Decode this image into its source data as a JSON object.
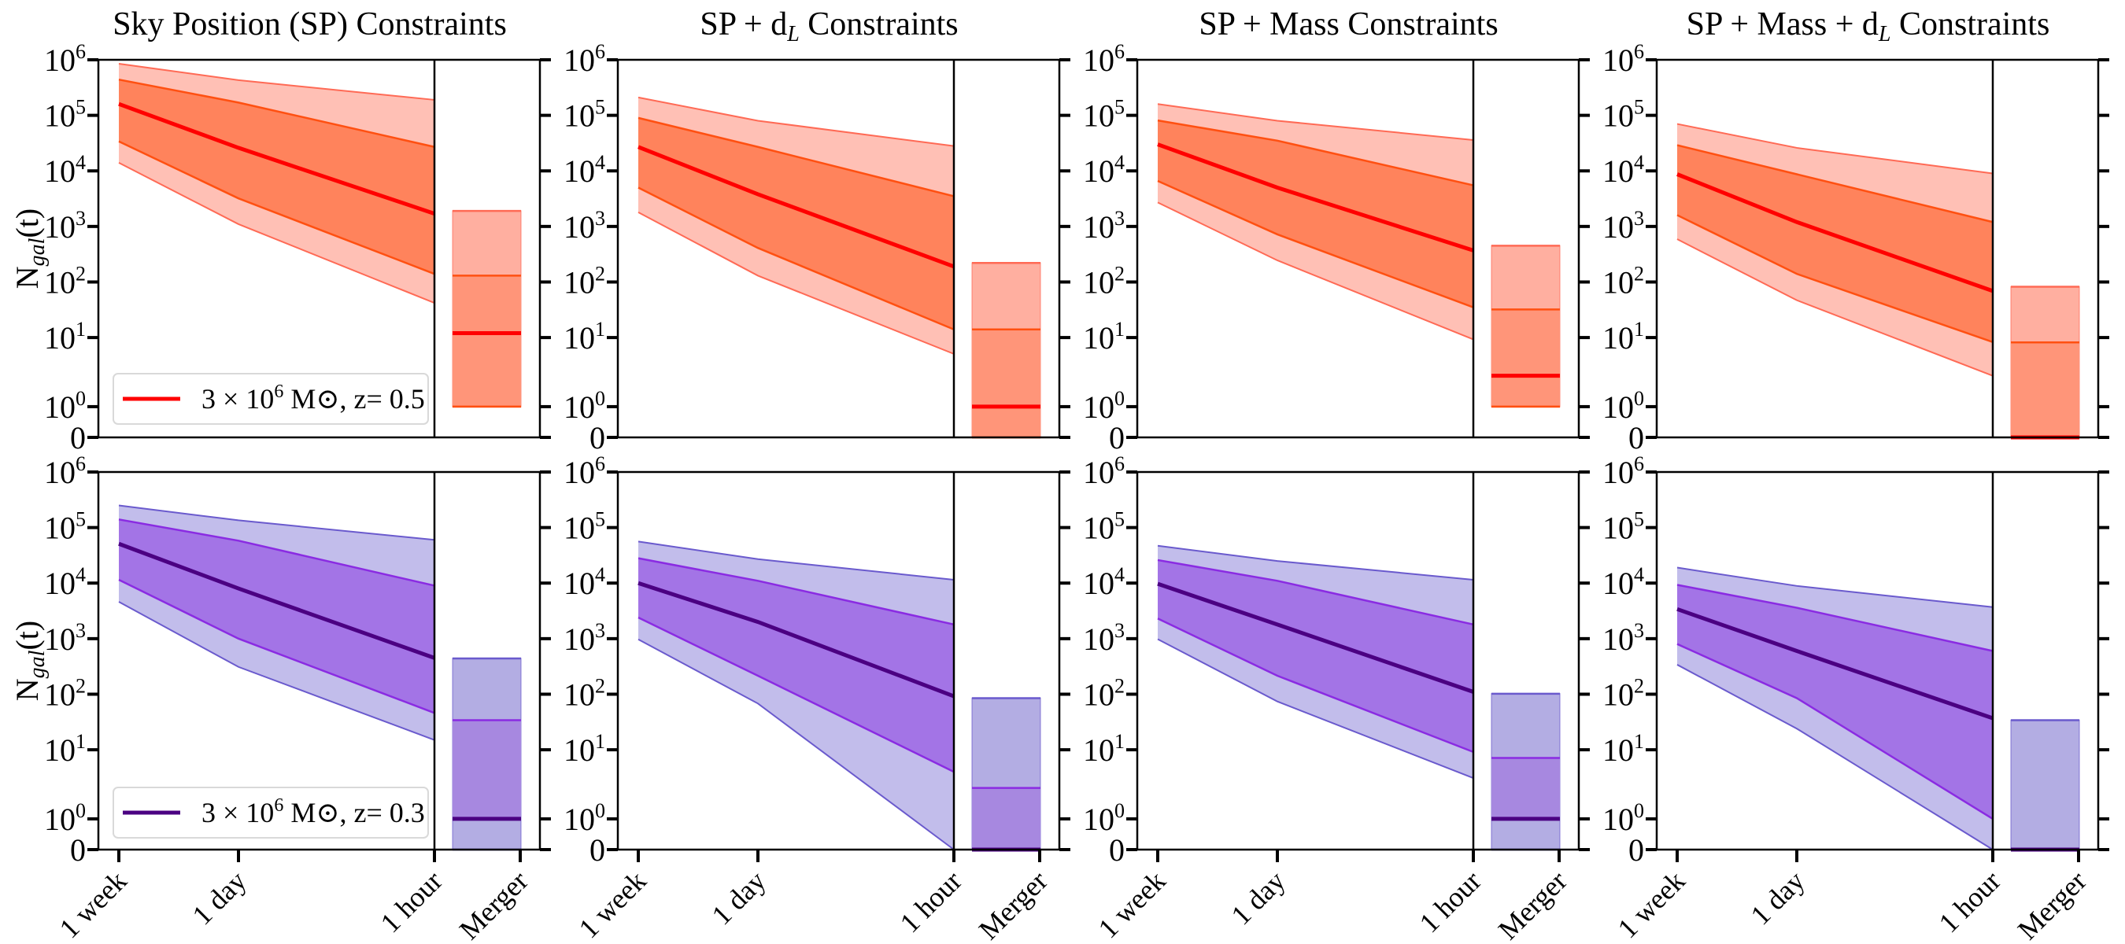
{
  "chart_data": {
    "type": "area",
    "scale": "symlog",
    "ylim": [
      0,
      1000000
    ],
    "x_categories": [
      "1 week",
      "1 day",
      "1 hour",
      "Merger"
    ],
    "yticks": [
      {
        "base": "10",
        "exp": "6",
        "value": 1000000
      },
      {
        "base": "10",
        "exp": "5",
        "value": 100000
      },
      {
        "base": "10",
        "exp": "4",
        "value": 10000
      },
      {
        "base": "10",
        "exp": "3",
        "value": 1000
      },
      {
        "base": "10",
        "exp": "2",
        "value": 100
      },
      {
        "base": "10",
        "exp": "1",
        "value": 10
      },
      {
        "base": "10",
        "exp": "0",
        "value": 1
      },
      {
        "base": "0",
        "exp": "",
        "value": 0
      }
    ],
    "ylabel": {
      "main": "N",
      "sub": "gal",
      "post": "(t)"
    },
    "themes": {
      "red": {
        "outer_fill": "#ffc0b5",
        "outer_edge": "#ff6a55",
        "inner_fill": "#ff835c",
        "inner_edge": "#ff5011",
        "median": "#ff0000",
        "box_outer_fill": "#ffafa0",
        "box_inner_fill": "#ff9579"
      },
      "purple": {
        "outer_fill": "#c2bdeb",
        "outer_edge": "#6a5acd",
        "inner_fill": "#a374e6",
        "inner_edge": "#8a2be2",
        "median": "#4b0082",
        "box_outer_fill": "#b3ade3",
        "box_inner_fill": "#a788e0"
      }
    },
    "legends": [
      {
        "pre": "3 × 10",
        "sup": "6",
        "post": " M⊙, z= 0.5",
        "theme": "red"
      },
      {
        "pre": "3 × 10",
        "sup": "6",
        "post": " M⊙, z= 0.3",
        "theme": "purple"
      }
    ],
    "titles": [
      {
        "pre": "Sky Position (SP) Constraints",
        "sub": "",
        "post": ""
      },
      {
        "pre": "SP + d",
        "sub": "L",
        "post": " Constraints"
      },
      {
        "pre": "SP + Mass Constraints",
        "sub": "",
        "post": ""
      },
      {
        "pre": "SP + Mass + d",
        "sub": "L",
        "post": " Constraints"
      }
    ],
    "panels": [
      {
        "row": 0,
        "col": 0,
        "theme": "red",
        "outer_upper": [
          850000,
          430000,
          190000
        ],
        "inner_upper": [
          440000,
          170000,
          27000
        ],
        "median": [
          160000,
          26000,
          1700
        ],
        "inner_lower": [
          34000,
          3200,
          140
        ],
        "outer_lower": [
          14000,
          1100,
          42
        ],
        "merger": {
          "outer_upper": 1900,
          "inner_upper": 130,
          "median": 12,
          "inner_lower": 1,
          "outer_lower": 1
        }
      },
      {
        "row": 0,
        "col": 1,
        "theme": "red",
        "outer_upper": [
          210000,
          80000,
          28000
        ],
        "inner_upper": [
          90000,
          27000,
          3500
        ],
        "median": [
          27000,
          3800,
          190
        ],
        "inner_lower": [
          5000,
          410,
          14
        ],
        "outer_lower": [
          1800,
          130,
          5.8
        ],
        "merger": {
          "outer_upper": 220,
          "inner_upper": 14,
          "median": 1,
          "inner_lower": 0,
          "outer_lower": 0
        }
      },
      {
        "row": 0,
        "col": 2,
        "theme": "red",
        "outer_upper": [
          160000,
          80000,
          36000
        ],
        "inner_upper": [
          81000,
          35000,
          5500
        ],
        "median": [
          30000,
          5000,
          370
        ],
        "inner_lower": [
          6600,
          720,
          35
        ],
        "outer_lower": [
          2700,
          245,
          9.4
        ],
        "merger": {
          "outer_upper": 450,
          "inner_upper": 32,
          "median": 2.8,
          "inner_lower": 1,
          "outer_lower": 1
        }
      },
      {
        "row": 0,
        "col": 3,
        "theme": "red",
        "outer_upper": [
          70000,
          26000,
          9000
        ],
        "inner_upper": [
          29000,
          8700,
          1200
        ],
        "median": [
          8700,
          1200,
          69
        ],
        "inner_lower": [
          1600,
          140,
          8.6
        ],
        "outer_lower": [
          590,
          47,
          2.8
        ],
        "merger": {
          "outer_upper": 82,
          "inner_upper": 8.5,
          "median": 0,
          "inner_lower": 0,
          "outer_lower": 0
        }
      },
      {
        "row": 1,
        "col": 0,
        "theme": "purple",
        "outer_upper": [
          250000,
          135000,
          60000
        ],
        "inner_upper": [
          140000,
          58000,
          9000
        ],
        "median": [
          51000,
          8000,
          450
        ],
        "inner_lower": [
          11500,
          1000,
          46
        ],
        "outer_lower": [
          4600,
          310,
          15
        ],
        "merger": {
          "outer_upper": 440,
          "inner_upper": 34,
          "median": 1,
          "inner_lower": 1,
          "outer_lower": 0
        }
      },
      {
        "row": 1,
        "col": 1,
        "theme": "purple",
        "outer_upper": [
          56000,
          27000,
          11500
        ],
        "inner_upper": [
          28000,
          11000,
          1800
        ],
        "median": [
          10000,
          2000,
          92
        ],
        "inner_lower": [
          2400,
          215,
          4.8
        ],
        "outer_lower": [
          970,
          68,
          0
        ],
        "merger": {
          "outer_upper": 85,
          "inner_upper": 2.8,
          "median": 0,
          "inner_lower": 0,
          "outer_lower": 0
        }
      },
      {
        "row": 1,
        "col": 2,
        "theme": "purple",
        "outer_upper": [
          47000,
          25000,
          11500
        ],
        "inner_upper": [
          26000,
          11000,
          1800
        ],
        "median": [
          9700,
          1800,
          110
        ],
        "inner_lower": [
          2300,
          215,
          9.3
        ],
        "outer_lower": [
          980,
          74,
          3.9
        ],
        "merger": {
          "outer_upper": 102,
          "inner_upper": 7.6,
          "median": 1,
          "inner_lower": 1,
          "outer_lower": 0
        }
      },
      {
        "row": 1,
        "col": 3,
        "theme": "purple",
        "outer_upper": [
          19000,
          8900,
          3700
        ],
        "inner_upper": [
          9300,
          3600,
          600
        ],
        "median": [
          3400,
          600,
          37
        ],
        "inner_lower": [
          800,
          85,
          1
        ],
        "outer_lower": [
          340,
          24,
          0
        ],
        "merger": {
          "outer_upper": 34,
          "inner_upper": 0,
          "median": 0,
          "inner_lower": 0,
          "outer_lower": 0
        }
      }
    ]
  }
}
